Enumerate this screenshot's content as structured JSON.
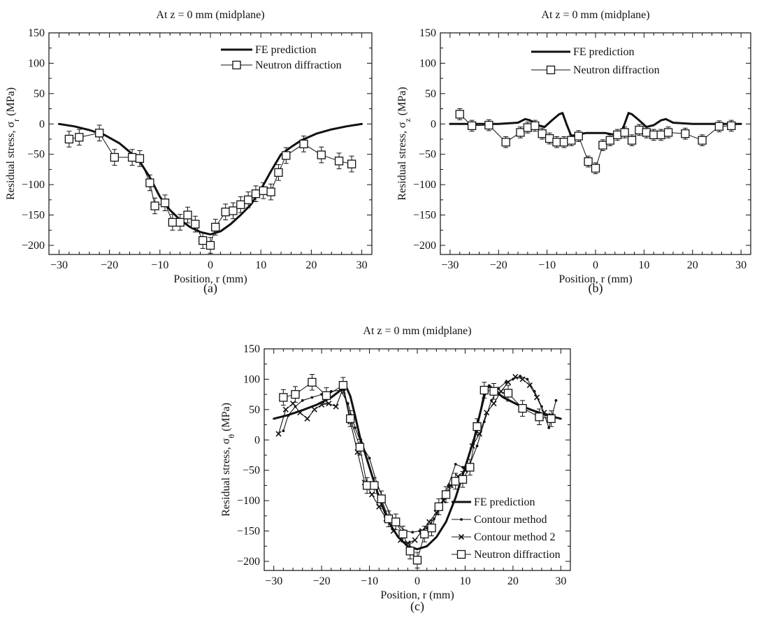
{
  "colors": {
    "ink": "#111111",
    "background": "#ffffff"
  },
  "icons": {
    "fe-prediction": "thick-line",
    "neutron-diffraction": "hollow-square-marker-with-error-bars",
    "contour-method": "small-dot-marker",
    "contour-method-2": "x-cross-marker"
  },
  "chart_data": [
    {
      "type": "line",
      "title": "At z = 0 mm (midplane)",
      "caption": "(a)",
      "xlabel": "Position, r (mm)",
      "ylabel_main": "Residual stress, σ",
      "ylabel_sub": "r",
      "ylabel_unit": " (MPa)",
      "xlim": [
        -32,
        32
      ],
      "ylim": [
        -215,
        150
      ],
      "xticks": [
        -30,
        -20,
        -10,
        0,
        10,
        20,
        30
      ],
      "yticks": [
        150,
        100,
        50,
        0,
        -50,
        -100,
        -150,
        -200
      ],
      "xtick_labels": [
        "−30",
        "−20",
        "−10",
        "0",
        "10",
        "20",
        "30"
      ],
      "ytick_labels": [
        "150",
        "100",
        "50",
        "0",
        "−50",
        "−100",
        "−150",
        "−200"
      ],
      "grid": false,
      "legend_position": "top-right",
      "series": [
        {
          "name": "FE prediction",
          "style": "thick-line",
          "x": [
            -30,
            -27,
            -24,
            -21,
            -18,
            -16,
            -14,
            -12,
            -10,
            -8,
            -6,
            -4,
            -2,
            0,
            2,
            4,
            6,
            8,
            10,
            12,
            14,
            16,
            18,
            21,
            24,
            27,
            30
          ],
          "y": [
            0,
            -4,
            -10,
            -18,
            -32,
            -46,
            -62,
            -88,
            -120,
            -142,
            -158,
            -170,
            -178,
            -182,
            -177,
            -165,
            -150,
            -133,
            -108,
            -78,
            -50,
            -38,
            -27,
            -16,
            -9,
            -4,
            0
          ]
        },
        {
          "name": "Neutron diffraction",
          "style": "square-marker-with-error",
          "x": [
            -28,
            -26,
            -22,
            -19,
            -15.5,
            -14,
            -12,
            -11,
            -9,
            -7.5,
            -6,
            -4.5,
            -3,
            -1.5,
            0,
            1,
            3,
            4.5,
            6,
            7.5,
            9,
            10.5,
            12,
            13.5,
            15,
            18.5,
            22,
            25.5,
            28
          ],
          "y": [
            -25,
            -22,
            -15,
            -55,
            -55,
            -57,
            -97,
            -135,
            -130,
            -162,
            -162,
            -150,
            -165,
            -192,
            -200,
            -170,
            -145,
            -143,
            -133,
            -125,
            -115,
            -110,
            -112,
            -80,
            -52,
            -33,
            -51,
            -61,
            -66
          ],
          "err": [
            13,
            13,
            13,
            13,
            13,
            13,
            13,
            13,
            13,
            13,
            13,
            13,
            13,
            13,
            13,
            13,
            13,
            13,
            13,
            13,
            13,
            13,
            13,
            13,
            13,
            13,
            13,
            13,
            13
          ]
        }
      ]
    },
    {
      "type": "line",
      "title": "At z = 0 mm (midplane)",
      "caption": "(b)",
      "xlabel": "Position, r (mm)",
      "ylabel_main": "Residual stress, σ",
      "ylabel_sub": "z",
      "ylabel_unit": " (MPa)",
      "xlim": [
        -32,
        32
      ],
      "ylim": [
        -215,
        150
      ],
      "xticks": [
        -30,
        -20,
        -10,
        0,
        10,
        20,
        30
      ],
      "yticks": [
        150,
        100,
        50,
        0,
        -50,
        -100,
        -150,
        -200
      ],
      "xtick_labels": [
        "−30",
        "−20",
        "−10",
        "0",
        "10",
        "20",
        "30"
      ],
      "ytick_labels": [
        "150",
        "100",
        "50",
        "0",
        "−50",
        "−100",
        "−150",
        "−200"
      ],
      "grid": false,
      "legend_position": "top-center",
      "series": [
        {
          "name": "FE prediction",
          "style": "thick-line",
          "x": [
            -30,
            -20,
            -16,
            -14.5,
            -13.5,
            -12,
            -10.5,
            -9,
            -7.5,
            -6.8,
            -6,
            -5,
            -4,
            -2,
            0,
            2,
            4,
            5,
            6,
            6.8,
            7.5,
            9,
            10.5,
            12,
            13.5,
            14.5,
            16,
            20,
            30
          ],
          "y": [
            0,
            0,
            2,
            8,
            6,
            -2,
            -5,
            6,
            16,
            18,
            0,
            -20,
            -18,
            -15,
            -15,
            -15,
            -18,
            -20,
            0,
            18,
            16,
            6,
            -5,
            -2,
            6,
            8,
            2,
            0,
            0
          ]
        },
        {
          "name": "Neutron diffraction",
          "style": "square-marker-with-error",
          "x": [
            -28,
            -25.5,
            -22,
            -18.5,
            -15.5,
            -14,
            -12.5,
            -11,
            -9.5,
            -8,
            -6.5,
            -5,
            -3.5,
            -1.5,
            0,
            1.5,
            3,
            4.5,
            6,
            7.5,
            9,
            10.5,
            12,
            13.5,
            15,
            18.5,
            22,
            25.5,
            28
          ],
          "y": [
            16,
            -3,
            -2,
            -30,
            -14,
            -6,
            -3,
            -16,
            -24,
            -30,
            -30,
            -27,
            -20,
            -62,
            -73,
            -35,
            -27,
            -18,
            -14,
            -27,
            -10,
            -14,
            -18,
            -18,
            -14,
            -16,
            -27,
            -4,
            -3
          ],
          "err": [
            9,
            9,
            9,
            9,
            9,
            9,
            9,
            9,
            9,
            9,
            9,
            9,
            9,
            9,
            9,
            9,
            9,
            9,
            9,
            9,
            9,
            9,
            9,
            9,
            9,
            9,
            9,
            9,
            9
          ]
        }
      ]
    },
    {
      "type": "line",
      "title": "At z = 0 mm (midplane)",
      "caption": "(c)",
      "xlabel": "Position, r (mm)",
      "ylabel_main": "Residual stress, σ",
      "ylabel_sub": "θ",
      "ylabel_unit": " (MPa)",
      "xlim": [
        -32,
        32
      ],
      "ylim": [
        -215,
        150
      ],
      "xticks": [
        -30,
        -20,
        -10,
        0,
        10,
        20,
        30
      ],
      "yticks": [
        150,
        100,
        50,
        0,
        -50,
        -100,
        -150,
        -200
      ],
      "xtick_labels": [
        "−30",
        "−20",
        "−10",
        "0",
        "10",
        "20",
        "30"
      ],
      "ytick_labels": [
        "150",
        "100",
        "50",
        "0",
        "−50",
        "−100",
        "−150",
        "−200"
      ],
      "grid": false,
      "legend_position": "bottom-right",
      "series": [
        {
          "name": "FE prediction",
          "style": "thick-line",
          "x": [
            -30,
            -27,
            -24,
            -21,
            -18,
            -16,
            -15,
            -14,
            -13,
            -12,
            -10,
            -8,
            -6,
            -4,
            -2,
            0,
            2,
            4,
            6,
            8,
            10,
            12,
            13,
            14,
            15,
            16,
            18,
            21,
            24,
            27,
            30
          ],
          "y": [
            35,
            41,
            49,
            58,
            70,
            82,
            90,
            72,
            40,
            5,
            -45,
            -95,
            -135,
            -160,
            -175,
            -180,
            -175,
            -160,
            -135,
            -95,
            -45,
            5,
            40,
            72,
            90,
            82,
            70,
            58,
            49,
            41,
            35
          ]
        },
        {
          "name": "Contour method",
          "style": "line-with-dot-markers",
          "x": [
            -28,
            -27,
            -25.5,
            -24,
            -22,
            -20,
            -18,
            -16,
            -14.5,
            -13,
            -11.5,
            -10,
            -8.5,
            -7,
            -5.5,
            -4,
            -2.5,
            -1,
            0.5,
            2,
            3.5,
            5,
            6.5,
            8,
            9.5,
            11,
            12.5,
            14,
            15.5,
            17,
            18.5,
            20,
            21.5,
            23,
            24.5,
            26,
            27.5,
            29
          ],
          "y": [
            15,
            40,
            55,
            65,
            70,
            75,
            80,
            82,
            60,
            20,
            -10,
            -30,
            -70,
            -100,
            -125,
            -140,
            -150,
            -152,
            -150,
            -145,
            -130,
            -110,
            -75,
            -40,
            -45,
            -40,
            -10,
            30,
            65,
            85,
            95,
            100,
            105,
            100,
            80,
            55,
            20,
            65
          ]
        },
        {
          "name": "Contour method 2",
          "style": "line-with-x-markers",
          "x": [
            -29,
            -27.5,
            -26,
            -24.5,
            -23,
            -21.5,
            -20,
            -18.5,
            -17,
            -15.5,
            -14,
            -12.5,
            -11,
            -9.5,
            -8,
            -6.5,
            -5,
            -3.5,
            -2,
            -0.5,
            1,
            2.5,
            4,
            5.5,
            7,
            8.5,
            10,
            11.5,
            13,
            14.5,
            16,
            17.5,
            19,
            20.5,
            22,
            23.5,
            25,
            26.5,
            28
          ],
          "y": [
            10,
            50,
            60,
            45,
            35,
            50,
            58,
            60,
            55,
            85,
            30,
            -20,
            -70,
            -90,
            -110,
            -130,
            -150,
            -165,
            -170,
            -165,
            -150,
            -135,
            -120,
            -100,
            -75,
            -60,
            -50,
            -10,
            10,
            45,
            60,
            80,
            95,
            104,
            100,
            90,
            70,
            45,
            40
          ]
        },
        {
          "name": "Neutron diffraction",
          "style": "square-marker-with-error",
          "x": [
            -28,
            -25.5,
            -22,
            -19,
            -15.5,
            -14,
            -12,
            -10.5,
            -9,
            -7.5,
            -6,
            -4.5,
            -3,
            -1.5,
            0,
            1.5,
            3,
            4.5,
            6,
            8,
            9.5,
            11,
            12.5,
            14,
            16,
            19,
            22,
            25.5,
            28
          ],
          "y": [
            70,
            75,
            95,
            73,
            90,
            35,
            -12,
            -75,
            -75,
            -97,
            -130,
            -135,
            -155,
            -183,
            -198,
            -155,
            -145,
            -110,
            -90,
            -68,
            -65,
            -45,
            22,
            82,
            80,
            77,
            52,
            38,
            35
          ],
          "err": [
            13,
            13,
            13,
            13,
            13,
            13,
            13,
            13,
            13,
            13,
            13,
            13,
            13,
            13,
            13,
            13,
            13,
            13,
            13,
            13,
            13,
            13,
            13,
            13,
            13,
            13,
            13,
            13,
            13
          ]
        }
      ]
    }
  ]
}
